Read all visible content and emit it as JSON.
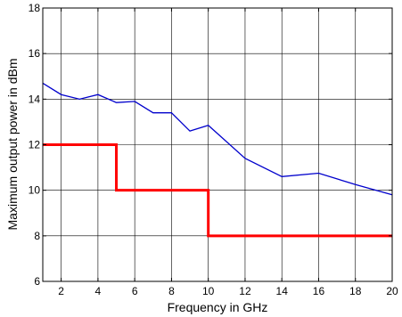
{
  "chart_data": {
    "type": "line",
    "title": "",
    "xlabel": "Frequency in GHz",
    "ylabel": "Maximum output power in dBm",
    "xlim": [
      1,
      20
    ],
    "ylim": [
      6,
      18
    ],
    "xticks": [
      2,
      4,
      6,
      8,
      10,
      12,
      14,
      16,
      18,
      20
    ],
    "yticks": [
      6,
      8,
      10,
      12,
      14,
      16,
      18
    ],
    "grid": true,
    "series": [
      {
        "color": "#0000cc",
        "x": [
          1,
          2,
          3,
          4,
          5,
          6,
          7,
          8,
          9,
          10,
          12,
          14,
          16,
          18,
          20
        ],
        "y": [
          14.7,
          14.2,
          14.0,
          14.2,
          13.85,
          13.9,
          13.4,
          13.4,
          12.6,
          12.85,
          11.4,
          10.6,
          10.75,
          10.25,
          9.8
        ]
      },
      {
        "color": "#ff0000",
        "step": true,
        "x": [
          1,
          5,
          5,
          10,
          10,
          20
        ],
        "y": [
          12,
          12,
          10,
          10,
          8,
          8
        ]
      }
    ]
  }
}
